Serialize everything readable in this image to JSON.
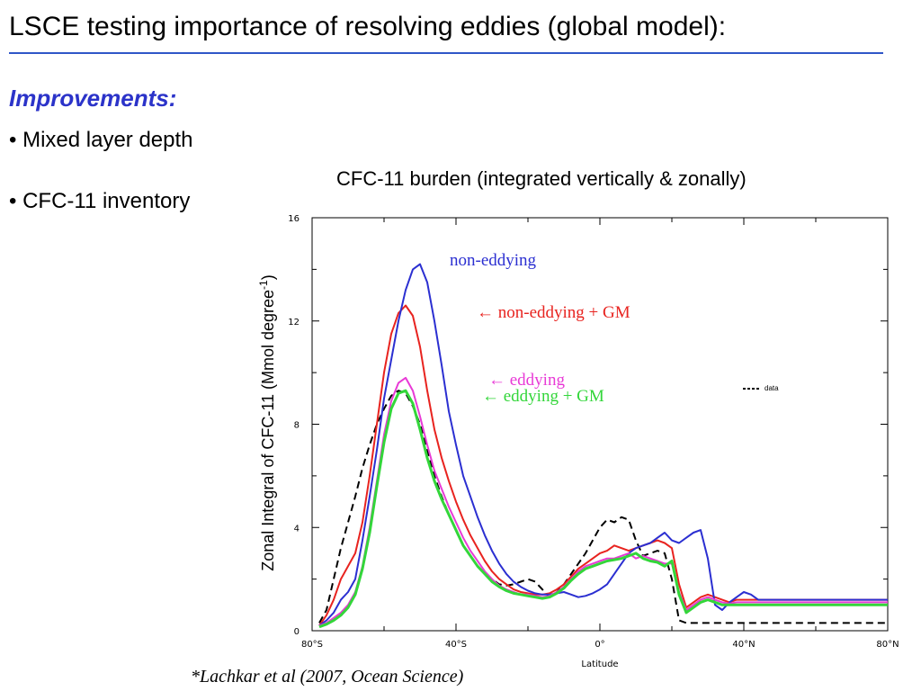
{
  "slide": {
    "title": "LSCE testing importance of resolving eddies (global model):",
    "subheading": "Improvements:",
    "bullets": [
      "• Mixed layer depth",
      "• CFC-11 inventory"
    ],
    "citation": "*Lachkar et al (2007, Ocean Science)"
  },
  "chart_data": {
    "type": "line",
    "title": "CFC-11 burden (integrated vertically & zonally)",
    "xlabel": "Latitude",
    "ylabel": "Zonal Integral of CFC-11 (Mmol degree",
    "ylabel_sup": "-1",
    "ylabel_end": ")",
    "xlim": [
      -80,
      80
    ],
    "ylim": [
      0,
      16
    ],
    "x_ticks": [
      -80,
      -40,
      0,
      40,
      80
    ],
    "x_tick_labels": [
      "80°S",
      "40°S",
      "0°",
      "40°N",
      "80°N"
    ],
    "y_ticks": [
      0,
      4,
      8,
      12,
      16
    ],
    "y_tick_labels": [
      "0",
      "4",
      "8",
      "12",
      "16"
    ],
    "grid": false,
    "series": [
      {
        "name": "non-eddying",
        "label_text": "non-eddying",
        "color": "#2b2fd1",
        "dash": "solid",
        "x": [
          -78,
          -76,
          -74,
          -72,
          -70,
          -68,
          -66,
          -64,
          -62,
          -60,
          -58,
          -56,
          -54,
          -52,
          -50,
          -48,
          -46,
          -44,
          -42,
          -40,
          -38,
          -36,
          -34,
          -32,
          -30,
          -28,
          -26,
          -24,
          -22,
          -20,
          -18,
          -16,
          -14,
          -12,
          -10,
          -8,
          -6,
          -4,
          -2,
          0,
          2,
          4,
          6,
          8,
          10,
          12,
          14,
          16,
          18,
          20,
          22,
          24,
          26,
          28,
          30,
          32,
          34,
          36,
          38,
          40,
          42,
          44,
          46,
          48,
          50,
          52,
          54,
          56,
          58,
          60,
          62,
          64,
          66,
          68,
          70,
          72,
          74,
          76,
          78,
          80
        ],
        "y": [
          0.2,
          0.4,
          0.7,
          1.2,
          1.5,
          2.0,
          3.5,
          5.2,
          7.0,
          9.0,
          10.5,
          12.0,
          13.2,
          14.0,
          14.2,
          13.5,
          12.0,
          10.3,
          8.5,
          7.2,
          6.0,
          5.2,
          4.4,
          3.7,
          3.1,
          2.6,
          2.2,
          1.9,
          1.7,
          1.55,
          1.45,
          1.4,
          1.4,
          1.45,
          1.5,
          1.4,
          1.3,
          1.35,
          1.45,
          1.6,
          1.8,
          2.2,
          2.6,
          3.0,
          3.2,
          3.3,
          3.4,
          3.6,
          3.8,
          3.5,
          3.4,
          3.6,
          3.8,
          3.9,
          2.8,
          1.0,
          0.8,
          1.1,
          1.3,
          1.5,
          1.4,
          1.2,
          1.2,
          1.2,
          1.2,
          1.2,
          1.2,
          1.2,
          1.2,
          1.2,
          1.2,
          1.2,
          1.2,
          1.2,
          1.2,
          1.2,
          1.2,
          1.2,
          1.2,
          1.2
        ]
      },
      {
        "name": "non-eddying + GM",
        "label_text": "← non-eddying + GM",
        "color": "#e8231f",
        "dash": "solid",
        "x": [
          -78,
          -76,
          -74,
          -72,
          -70,
          -68,
          -66,
          -64,
          -62,
          -60,
          -58,
          -56,
          -54,
          -52,
          -50,
          -48,
          -46,
          -44,
          -42,
          -40,
          -38,
          -36,
          -34,
          -32,
          -30,
          -28,
          -26,
          -24,
          -22,
          -20,
          -18,
          -16,
          -14,
          -12,
          -10,
          -8,
          -6,
          -4,
          -2,
          0,
          2,
          4,
          6,
          8,
          10,
          12,
          14,
          16,
          18,
          20,
          22,
          24,
          26,
          28,
          30,
          32,
          34,
          36,
          38,
          40,
          42,
          44,
          46,
          48,
          50,
          52,
          54,
          56,
          58,
          60,
          62,
          64,
          66,
          68,
          70,
          72,
          74,
          76,
          78,
          80
        ],
        "y": [
          0.2,
          0.6,
          1.2,
          2.0,
          2.5,
          3.0,
          4.2,
          6.0,
          8.0,
          10.0,
          11.5,
          12.3,
          12.6,
          12.2,
          11.0,
          9.3,
          7.8,
          6.7,
          5.8,
          5.0,
          4.3,
          3.7,
          3.2,
          2.7,
          2.3,
          2.0,
          1.8,
          1.6,
          1.5,
          1.45,
          1.4,
          1.4,
          1.45,
          1.6,
          1.8,
          2.1,
          2.4,
          2.6,
          2.8,
          3.0,
          3.1,
          3.3,
          3.2,
          3.1,
          3.2,
          3.3,
          3.4,
          3.5,
          3.4,
          3.2,
          1.8,
          0.9,
          1.1,
          1.3,
          1.4,
          1.3,
          1.2,
          1.1,
          1.2,
          1.2,
          1.2,
          1.2,
          1.2,
          1.2,
          1.2,
          1.2,
          1.2,
          1.2,
          1.2,
          1.2,
          1.2,
          1.2,
          1.2,
          1.2,
          1.2,
          1.2,
          1.2,
          1.2,
          1.2,
          1.2
        ]
      },
      {
        "name": "eddying",
        "label_text": "← eddying",
        "color": "#e83ad6",
        "dash": "solid",
        "x": [
          -78,
          -76,
          -74,
          -72,
          -70,
          -68,
          -66,
          -64,
          -62,
          -60,
          -58,
          -56,
          -54,
          -52,
          -50,
          -48,
          -46,
          -44,
          -42,
          -40,
          -38,
          -36,
          -34,
          -32,
          -30,
          -28,
          -26,
          -24,
          -22,
          -20,
          -18,
          -16,
          -14,
          -12,
          -10,
          -8,
          -6,
          -4,
          -2,
          0,
          2,
          4,
          6,
          8,
          10,
          12,
          14,
          16,
          18,
          20,
          22,
          24,
          26,
          28,
          30,
          32,
          34,
          36,
          38,
          40,
          42,
          44,
          46,
          48,
          50,
          52,
          54,
          56,
          58,
          60,
          62,
          64,
          66,
          68,
          70,
          72,
          74,
          76,
          78,
          80
        ],
        "y": [
          0.2,
          0.3,
          0.5,
          0.7,
          1.0,
          1.5,
          2.5,
          4.0,
          5.8,
          7.6,
          8.9,
          9.6,
          9.8,
          9.3,
          8.3,
          7.2,
          6.2,
          5.5,
          4.8,
          4.2,
          3.6,
          3.1,
          2.7,
          2.3,
          2.0,
          1.75,
          1.6,
          1.5,
          1.4,
          1.4,
          1.35,
          1.3,
          1.35,
          1.5,
          1.7,
          2.0,
          2.3,
          2.5,
          2.6,
          2.7,
          2.8,
          2.8,
          2.9,
          3.0,
          2.8,
          2.9,
          2.8,
          2.7,
          2.6,
          2.6,
          1.5,
          0.8,
          1.0,
          1.2,
          1.3,
          1.2,
          1.1,
          1.05,
          1.1,
          1.1,
          1.1,
          1.1,
          1.1,
          1.1,
          1.1,
          1.1,
          1.1,
          1.1,
          1.1,
          1.1,
          1.1,
          1.1,
          1.1,
          1.1,
          1.1,
          1.1,
          1.1,
          1.1,
          1.1,
          1.1
        ]
      },
      {
        "name": "eddying + GM",
        "label_text": "← eddying + GM",
        "color": "#33d63a",
        "dash": "solid",
        "x": [
          -78,
          -76,
          -74,
          -72,
          -70,
          -68,
          -66,
          -64,
          -62,
          -60,
          -58,
          -56,
          -54,
          -52,
          -50,
          -48,
          -46,
          -44,
          -42,
          -40,
          -38,
          -36,
          -34,
          -32,
          -30,
          -28,
          -26,
          -24,
          -22,
          -20,
          -18,
          -16,
          -14,
          -12,
          -10,
          -8,
          -6,
          -4,
          -2,
          0,
          2,
          4,
          6,
          8,
          10,
          12,
          14,
          16,
          18,
          20,
          22,
          24,
          26,
          28,
          30,
          32,
          34,
          36,
          38,
          40,
          42,
          44,
          46,
          48,
          50,
          52,
          54,
          56,
          58,
          60,
          62,
          64,
          66,
          68,
          70,
          72,
          74,
          76,
          78,
          80
        ],
        "y": [
          0.15,
          0.25,
          0.4,
          0.6,
          0.9,
          1.4,
          2.4,
          3.8,
          5.6,
          7.3,
          8.6,
          9.2,
          9.3,
          8.8,
          7.8,
          6.7,
          5.8,
          5.1,
          4.5,
          3.9,
          3.3,
          2.9,
          2.5,
          2.2,
          1.9,
          1.7,
          1.55,
          1.45,
          1.4,
          1.35,
          1.3,
          1.25,
          1.3,
          1.45,
          1.65,
          1.95,
          2.2,
          2.4,
          2.5,
          2.6,
          2.7,
          2.75,
          2.8,
          2.9,
          3.0,
          2.8,
          2.7,
          2.65,
          2.5,
          2.7,
          1.4,
          0.7,
          0.9,
          1.1,
          1.2,
          1.1,
          1.0,
          1.0,
          1.0,
          1.0,
          1.0,
          1.0,
          1.0,
          1.0,
          1.0,
          1.0,
          1.0,
          1.0,
          1.0,
          1.0,
          1.0,
          1.0,
          1.0,
          1.0,
          1.0,
          1.0,
          1.0,
          1.0,
          1.0,
          1.0
        ]
      },
      {
        "name": "data",
        "label_text": "data",
        "color": "#000000",
        "dash": "dashed",
        "x": [
          -78,
          -76,
          -74,
          -72,
          -70,
          -68,
          -66,
          -64,
          -62,
          -60,
          -58,
          -56,
          -54,
          -52,
          -50,
          -48,
          -46,
          -44,
          -42,
          -40,
          -38,
          -36,
          -34,
          -32,
          -30,
          -28,
          -26,
          -24,
          -22,
          -20,
          -18,
          -16,
          -14,
          -12,
          -10,
          -8,
          -6,
          -4,
          -2,
          0,
          2,
          4,
          6,
          8,
          10,
          12,
          14,
          16,
          18,
          20,
          22,
          24,
          26,
          28,
          30,
          32,
          34,
          36,
          38,
          40,
          42,
          44,
          46,
          48,
          50,
          52,
          54,
          56,
          58,
          60,
          62,
          64,
          66,
          68,
          70,
          72,
          74,
          76,
          78,
          80
        ],
        "y": [
          0.3,
          0.8,
          2.0,
          3.2,
          4.2,
          5.2,
          6.3,
          7.2,
          8.0,
          8.6,
          9.1,
          9.3,
          9.2,
          8.7,
          8.0,
          7.0,
          6.0,
          5.2,
          4.5,
          3.9,
          3.3,
          2.9,
          2.5,
          2.2,
          2.0,
          1.8,
          1.75,
          1.8,
          1.9,
          2.0,
          1.9,
          1.6,
          1.3,
          1.5,
          1.8,
          2.2,
          2.6,
          3.0,
          3.5,
          4.0,
          4.3,
          4.2,
          4.4,
          4.3,
          3.5,
          2.9,
          3.0,
          3.1,
          3.0,
          2.0,
          0.4,
          0.3,
          0.3,
          0.3,
          0.3,
          0.3,
          0.3,
          0.3,
          0.3,
          0.3,
          0.3,
          0.3,
          0.3,
          0.3,
          0.3,
          0.3,
          0.3,
          0.3,
          0.3,
          0.3,
          0.3,
          0.3,
          0.3,
          0.3,
          0.3,
          0.3,
          0.3,
          0.3,
          0.3,
          0.3
        ]
      }
    ]
  }
}
